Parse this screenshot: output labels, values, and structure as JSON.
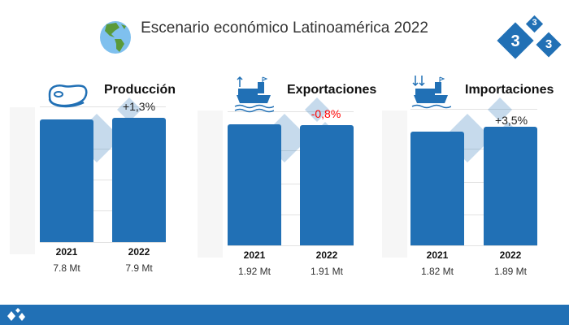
{
  "header": {
    "title": "Escenario económico Latinoamérica 2022",
    "globe_icon": "globe-americas-icon",
    "logo_text": "333"
  },
  "colors": {
    "bar": "#2170b5",
    "negative": "#ff0000",
    "positive": "#222222"
  },
  "chart_data": [
    {
      "type": "bar",
      "title": "Producción",
      "icon": "steak-icon",
      "categories": [
        "2021",
        "2022"
      ],
      "values": [
        7.8,
        7.9
      ],
      "value_labels": [
        "7.8 Mt",
        "7.9 Mt"
      ],
      "change": "+1,3%",
      "change_sign": "positive",
      "ylim": [
        0,
        8.7
      ],
      "unit": "Mt"
    },
    {
      "type": "bar",
      "title": "Exportaciones",
      "icon": "export-ship-icon",
      "categories": [
        "2021",
        "2022"
      ],
      "values": [
        1.92,
        1.91
      ],
      "value_labels": [
        "1.92 Mt",
        "1.91 Mt"
      ],
      "change": "-0,8%",
      "change_sign": "negative",
      "ylim": [
        0,
        2.09
      ],
      "unit": "Mt"
    },
    {
      "type": "bar",
      "title": "Importaciones",
      "icon": "import-ship-icon",
      "categories": [
        "2021",
        "2022"
      ],
      "values": [
        1.82,
        1.89
      ],
      "value_labels": [
        "1.82 Mt",
        "1.89 Mt"
      ],
      "change": "+3,5%",
      "change_sign": "positive",
      "ylim": [
        0,
        2.1
      ],
      "unit": "Mt"
    }
  ]
}
